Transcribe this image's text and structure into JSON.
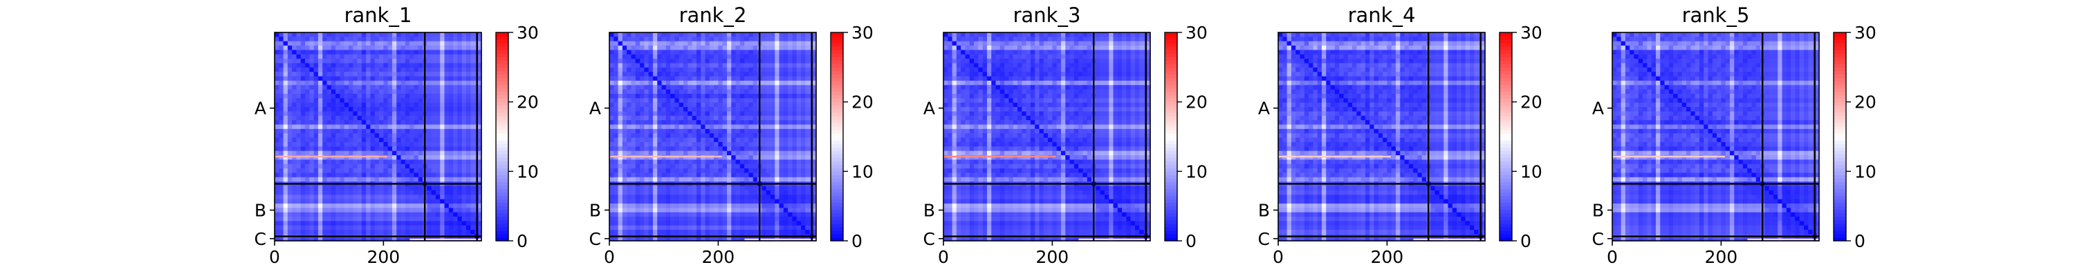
{
  "chart_data": [
    {
      "type": "heatmap",
      "title": "rank_1",
      "x_ticks": [
        0,
        200
      ],
      "y_ticks": [
        "A",
        "B",
        "C"
      ],
      "colorbar_ticks": [
        0,
        10,
        20,
        30
      ],
      "value_range": [
        0,
        30
      ],
      "chain_lengths": {
        "A": 276,
        "B": 96,
        "C": 8
      },
      "colormap": [
        "#0000ff",
        "#ffffff",
        "#ff0000"
      ],
      "grid": false,
      "bright_rows": [
        {
          "row": 225,
          "level": 20
        }
      ]
    },
    {
      "type": "heatmap",
      "title": "rank_2",
      "x_ticks": [
        0,
        200
      ],
      "y_ticks": [
        "A",
        "B",
        "C"
      ],
      "colorbar_ticks": [
        0,
        10,
        20,
        30
      ],
      "value_range": [
        0,
        30
      ],
      "chain_lengths": {
        "A": 276,
        "B": 96,
        "C": 8
      },
      "colormap": [
        "#0000ff",
        "#ffffff",
        "#ff0000"
      ],
      "grid": false,
      "bright_rows": [
        {
          "row": 225,
          "level": 19
        }
      ]
    },
    {
      "type": "heatmap",
      "title": "rank_3",
      "x_ticks": [
        0,
        200
      ],
      "y_ticks": [
        "A",
        "B",
        "C"
      ],
      "colorbar_ticks": [
        0,
        10,
        20,
        30
      ],
      "value_range": [
        0,
        30
      ],
      "chain_lengths": {
        "A": 276,
        "B": 96,
        "C": 8
      },
      "colormap": [
        "#0000ff",
        "#ffffff",
        "#ff0000"
      ],
      "grid": false,
      "bright_rows": [
        {
          "row": 225,
          "level": 22
        }
      ]
    },
    {
      "type": "heatmap",
      "title": "rank_4",
      "x_ticks": [
        0,
        200
      ],
      "y_ticks": [
        "A",
        "B",
        "C"
      ],
      "colorbar_ticks": [
        0,
        10,
        20,
        30
      ],
      "value_range": [
        0,
        30
      ],
      "chain_lengths": {
        "A": 276,
        "B": 96,
        "C": 8
      },
      "colormap": [
        "#0000ff",
        "#ffffff",
        "#ff0000"
      ],
      "grid": false,
      "bright_rows": [
        {
          "row": 225,
          "level": 18
        }
      ]
    },
    {
      "type": "heatmap",
      "title": "rank_5",
      "x_ticks": [
        0,
        200
      ],
      "y_ticks": [
        "A",
        "B",
        "C"
      ],
      "colorbar_ticks": [
        0,
        10,
        20,
        30
      ],
      "value_range": [
        0,
        30
      ],
      "chain_lengths": {
        "A": 276,
        "B": 96,
        "C": 8
      },
      "colormap": [
        "#0000ff",
        "#ffffff",
        "#ff0000"
      ],
      "grid": false,
      "bright_rows": [
        {
          "row": 225,
          "level": 18
        }
      ]
    }
  ]
}
